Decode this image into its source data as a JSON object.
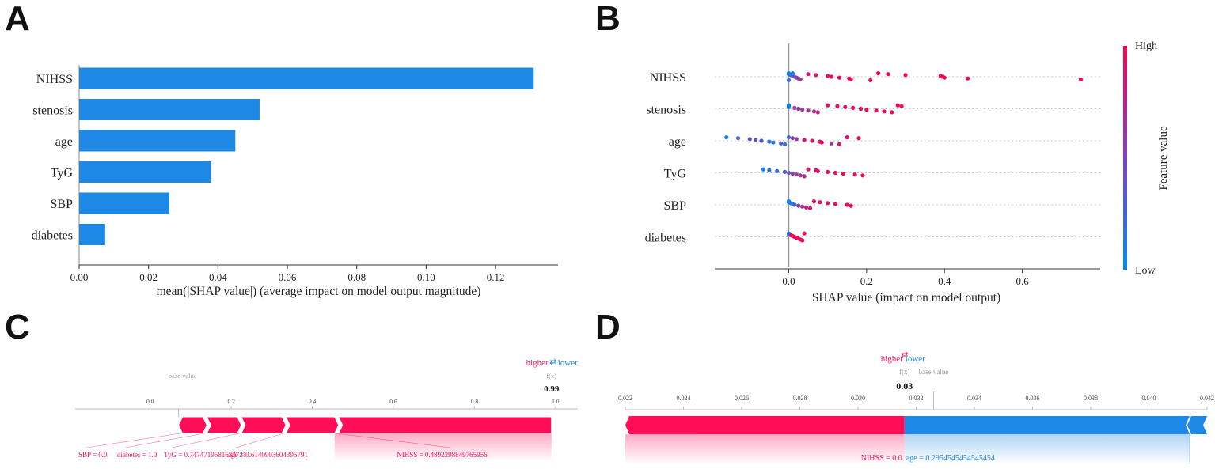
{
  "panels": {
    "a": "A",
    "b": "B",
    "c": "C",
    "d": "D"
  },
  "colors": {
    "bar": "#1E88E5",
    "pos": "#FF0D57",
    "neg": "#1E88E5",
    "base": "#999999"
  },
  "chart_data": [
    {
      "type": "bar",
      "orientation": "horizontal",
      "categories": [
        "NIHSS",
        "stenosis",
        "age",
        "TyG",
        "SBP",
        "diabetes"
      ],
      "values": [
        0.131,
        0.052,
        0.045,
        0.038,
        0.026,
        0.0075
      ],
      "xlabel": "mean(|SHAP value|) (average impact on model output magnitude)",
      "xticks": [
        "0.00",
        "0.02",
        "0.04",
        "0.06",
        "0.08",
        "0.10",
        "0.12"
      ],
      "xlim": [
        0,
        0.138
      ]
    },
    {
      "type": "scatter",
      "categories": [
        "NIHSS",
        "stenosis",
        "age",
        "TyG",
        "SBP",
        "diabetes"
      ],
      "xlabel": "SHAP value (impact on model output)",
      "xticks": [
        "0.0",
        "0.2",
        "0.4",
        "0.6"
      ],
      "xlim": [
        -0.19,
        0.8
      ],
      "colorbar": {
        "label": "Feature value",
        "high": "High",
        "low": "Low",
        "colors": [
          "#008BFB",
          "#FF0052"
        ]
      },
      "series": [
        {
          "feature": "NIHSS",
          "points": [
            [
              0.0,
              0.0
            ],
            [
              0.0,
              0.1
            ],
            [
              0.005,
              0.2
            ],
            [
              0.01,
              0.3
            ],
            [
              0.015,
              0.4
            ],
            [
              0.02,
              0.5
            ],
            [
              0.025,
              0.55
            ],
            [
              0.03,
              0.6
            ],
            [
              0.0,
              0.25
            ],
            [
              0.01,
              0.15
            ],
            [
              0.05,
              0.85
            ],
            [
              0.07,
              0.85
            ],
            [
              0.1,
              0.9
            ],
            [
              0.11,
              0.9
            ],
            [
              0.13,
              0.9
            ],
            [
              0.155,
              0.95
            ],
            [
              0.16,
              0.95
            ],
            [
              0.21,
              0.95
            ],
            [
              0.23,
              0.95
            ],
            [
              0.255,
              0.95
            ],
            [
              0.3,
              0.95
            ],
            [
              0.39,
              0.95
            ],
            [
              0.395,
              0.95
            ],
            [
              0.4,
              0.95
            ],
            [
              0.46,
              0.95
            ],
            [
              0.75,
              1.0
            ]
          ]
        },
        {
          "feature": "stenosis",
          "points": [
            [
              0.0,
              0.0
            ],
            [
              0.0,
              0.05
            ],
            [
              0.0,
              0.1
            ],
            [
              0.015,
              0.55
            ],
            [
              0.025,
              0.6
            ],
            [
              0.035,
              0.6
            ],
            [
              0.05,
              0.65
            ],
            [
              0.065,
              0.65
            ],
            [
              0.075,
              0.7
            ],
            [
              0.1,
              0.9
            ],
            [
              0.125,
              0.9
            ],
            [
              0.145,
              0.9
            ],
            [
              0.165,
              0.95
            ],
            [
              0.185,
              0.95
            ],
            [
              0.2,
              0.95
            ],
            [
              0.225,
              0.95
            ],
            [
              0.245,
              0.95
            ],
            [
              0.265,
              0.95
            ],
            [
              0.28,
              0.95
            ],
            [
              0.29,
              0.95
            ]
          ]
        },
        {
          "feature": "age",
          "points": [
            [
              -0.16,
              0.1
            ],
            [
              -0.13,
              0.3
            ],
            [
              -0.1,
              0.35
            ],
            [
              -0.085,
              0.4
            ],
            [
              -0.07,
              0.3
            ],
            [
              -0.05,
              0.2
            ],
            [
              -0.04,
              0.15
            ],
            [
              -0.02,
              0.3
            ],
            [
              -0.01,
              0.2
            ],
            [
              0.0,
              0.25
            ],
            [
              0.01,
              0.5
            ],
            [
              0.02,
              0.6
            ],
            [
              0.04,
              0.8
            ],
            [
              0.06,
              0.85
            ],
            [
              0.08,
              0.9
            ],
            [
              0.085,
              0.9
            ],
            [
              0.11,
              0.55
            ],
            [
              0.13,
              0.85
            ],
            [
              0.15,
              0.9
            ],
            [
              0.18,
              0.95
            ]
          ]
        },
        {
          "feature": "TyG",
          "points": [
            [
              -0.065,
              0.05
            ],
            [
              -0.05,
              0.2
            ],
            [
              -0.03,
              0.2
            ],
            [
              -0.01,
              0.3
            ],
            [
              0.0,
              0.4
            ],
            [
              0.01,
              0.5
            ],
            [
              0.02,
              0.6
            ],
            [
              0.03,
              0.65
            ],
            [
              0.04,
              0.7
            ],
            [
              0.05,
              0.8
            ],
            [
              0.07,
              0.85
            ],
            [
              0.075,
              0.9
            ],
            [
              0.1,
              0.9
            ],
            [
              0.12,
              0.95
            ],
            [
              0.14,
              0.95
            ],
            [
              0.17,
              0.95
            ],
            [
              0.19,
              0.95
            ]
          ]
        },
        {
          "feature": "SBP",
          "points": [
            [
              0.0,
              0.0
            ],
            [
              0.0,
              0.1
            ],
            [
              0.005,
              0.05
            ],
            [
              0.01,
              0.2
            ],
            [
              0.015,
              0.3
            ],
            [
              0.025,
              0.5
            ],
            [
              0.035,
              0.65
            ],
            [
              0.045,
              0.75
            ],
            [
              0.055,
              0.8
            ],
            [
              0.065,
              0.85
            ],
            [
              0.08,
              0.9
            ],
            [
              0.1,
              0.9
            ],
            [
              0.12,
              0.95
            ],
            [
              0.15,
              0.95
            ],
            [
              0.16,
              0.95
            ]
          ]
        },
        {
          "feature": "diabetes",
          "points": [
            [
              0.0,
              0.0
            ],
            [
              0.0,
              0.05
            ],
            [
              0.005,
              0.9
            ],
            [
              0.01,
              0.95
            ],
            [
              0.015,
              0.95
            ],
            [
              0.02,
              0.95
            ],
            [
              0.025,
              0.95
            ],
            [
              0.03,
              0.95
            ],
            [
              0.035,
              0.95
            ],
            [
              0.04,
              0.95
            ]
          ]
        }
      ]
    },
    {
      "type": "force",
      "title_higher": "higher",
      "title_lower": "lower",
      "arrow": "⇄",
      "fx_label": "f(x)",
      "fx_value": "0.99",
      "base_label": "base value",
      "axis_ticks": [
        "0.0",
        "0.2",
        "0.4",
        "0.6",
        "0.8",
        "1.0"
      ],
      "xlim": [
        -0.185,
        1.055
      ],
      "base_value": 0.07,
      "segments_pos": [
        {
          "label": "SBP = 0.0",
          "from": 0.07,
          "to": 0.13
        },
        {
          "label": "diabetes = 1.0",
          "from": 0.13,
          "to": 0.215
        },
        {
          "label": "TyG = 0.7474719581633721",
          "from": 0.215,
          "to": 0.325
        },
        {
          "label": "age = 0.6140903604395791",
          "from": 0.325,
          "to": 0.455
        },
        {
          "label": "NIHSS = 0.4892298849765956",
          "from": 0.455,
          "to": 0.99
        }
      ]
    },
    {
      "type": "force",
      "title_higher": "higher",
      "title_lower": "lower",
      "arrow": "⇄",
      "fx_label": "f(x)",
      "fx_value": "0.03",
      "base_label": "base value",
      "axis_ticks": [
        "0.022",
        "0.024",
        "0.026",
        "0.028",
        "0.030",
        "0.032",
        "0.034",
        "0.036",
        "0.038",
        "0.040",
        "0.042"
      ],
      "xlim": [
        0.022,
        0.042
      ],
      "fx": 0.0316,
      "base_value": 0.0326,
      "segments_pos": [
        {
          "label": "NIHSS = 0.0",
          "from": 0.022,
          "to": 0.0316
        }
      ],
      "segments_neg": [
        {
          "label": "age = 0.2954545454545454",
          "from": 0.0316,
          "to": 0.0414
        }
      ],
      "neg_extra_to": 0.042
    }
  ]
}
